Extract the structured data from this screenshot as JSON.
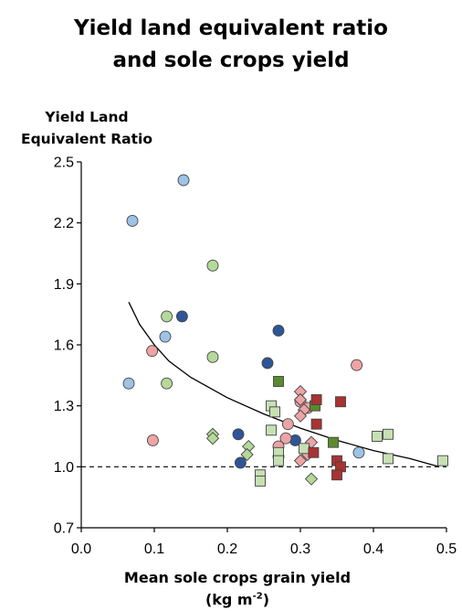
{
  "chart_data": {
    "type": "scatter",
    "title": [
      "Yield land equivalent ratio",
      "and sole crops yield"
    ],
    "ylabel": [
      "Yield Land",
      "Equivalent Ratio"
    ],
    "xlabel": {
      "line1": "Mean sole crops grain yield",
      "unit_base": "(kg m",
      "unit_sup": "-2",
      "unit_end": ")"
    },
    "xlim": [
      0.0,
      0.5
    ],
    "ylim": [
      0.7,
      2.5
    ],
    "xticks": [
      0.0,
      0.1,
      0.2,
      0.3,
      0.4,
      0.5
    ],
    "yticks": [
      0.7,
      1.0,
      1.3,
      1.6,
      1.9,
      2.2,
      2.5
    ],
    "xtick_labels": [
      "0.0",
      "0.1",
      "0.2",
      "0.3",
      "0.4",
      "0.5"
    ],
    "ytick_labels": [
      "0.7",
      "1.0",
      "1.3",
      "1.6",
      "1.9",
      "2.2",
      "2.5"
    ],
    "reference_line": {
      "y": 1.0,
      "style": "dashed"
    },
    "fit_curve": [
      [
        0.065,
        1.81
      ],
      [
        0.08,
        1.7
      ],
      [
        0.1,
        1.6
      ],
      [
        0.12,
        1.52
      ],
      [
        0.15,
        1.44
      ],
      [
        0.2,
        1.34
      ],
      [
        0.25,
        1.26
      ],
      [
        0.3,
        1.19
      ],
      [
        0.35,
        1.13
      ],
      [
        0.4,
        1.08
      ],
      [
        0.45,
        1.04
      ],
      [
        0.49,
        1.0
      ]
    ],
    "series": [
      {
        "marker": "circle",
        "color": "#9dc3e6",
        "points": [
          [
            0.07,
            2.21
          ],
          [
            0.14,
            2.41
          ],
          [
            0.065,
            1.41
          ],
          [
            0.115,
            1.64
          ],
          [
            0.38,
            1.07
          ]
        ]
      },
      {
        "marker": "circle",
        "color": "#2e5597",
        "points": [
          [
            0.138,
            1.74
          ],
          [
            0.27,
            1.67
          ],
          [
            0.255,
            1.51
          ],
          [
            0.215,
            1.16
          ],
          [
            0.218,
            1.02
          ],
          [
            0.293,
            1.13
          ]
        ]
      },
      {
        "marker": "circle",
        "color": "#b4d99a",
        "points": [
          [
            0.18,
            1.99
          ],
          [
            0.117,
            1.74
          ],
          [
            0.18,
            1.54
          ],
          [
            0.117,
            1.41
          ],
          [
            0.27,
            1.05
          ]
        ]
      },
      {
        "marker": "circle",
        "color": "#eea4a4",
        "points": [
          [
            0.097,
            1.57
          ],
          [
            0.098,
            1.13
          ],
          [
            0.377,
            1.5
          ],
          [
            0.3,
            1.32
          ],
          [
            0.31,
            1.29
          ],
          [
            0.283,
            1.21
          ],
          [
            0.28,
            1.14
          ],
          [
            0.27,
            1.1
          ]
        ]
      },
      {
        "marker": "diamond",
        "color": "#b4d99a",
        "points": [
          [
            0.18,
            1.16
          ],
          [
            0.18,
            1.14
          ],
          [
            0.229,
            1.1
          ],
          [
            0.227,
            1.06
          ],
          [
            0.315,
            0.94
          ]
        ]
      },
      {
        "marker": "diamond",
        "color": "#eea4a4",
        "points": [
          [
            0.3,
            1.37
          ],
          [
            0.3,
            1.33
          ],
          [
            0.305,
            1.28
          ],
          [
            0.3,
            1.25
          ],
          [
            0.315,
            1.12
          ],
          [
            0.3,
            1.03
          ],
          [
            0.31,
            1.06
          ]
        ]
      },
      {
        "marker": "square",
        "color": "#c6e0b4",
        "points": [
          [
            0.26,
            1.3
          ],
          [
            0.265,
            1.27
          ],
          [
            0.26,
            1.18
          ],
          [
            0.27,
            1.07
          ],
          [
            0.27,
            1.03
          ],
          [
            0.245,
            0.96
          ],
          [
            0.245,
            0.93
          ],
          [
            0.305,
            1.09
          ],
          [
            0.405,
            1.15
          ],
          [
            0.42,
            1.16
          ],
          [
            0.42,
            1.04
          ],
          [
            0.495,
            1.03
          ]
        ]
      },
      {
        "marker": "square",
        "color": "#5a8a2e",
        "points": [
          [
            0.27,
            1.42
          ],
          [
            0.32,
            1.3
          ],
          [
            0.345,
            1.12
          ]
        ]
      },
      {
        "marker": "square",
        "color": "#a93232",
        "points": [
          [
            0.322,
            1.33
          ],
          [
            0.322,
            1.21
          ],
          [
            0.355,
            1.32
          ],
          [
            0.318,
            1.07
          ],
          [
            0.35,
            1.03
          ],
          [
            0.355,
            1.0
          ],
          [
            0.35,
            0.96
          ]
        ]
      }
    ]
  }
}
